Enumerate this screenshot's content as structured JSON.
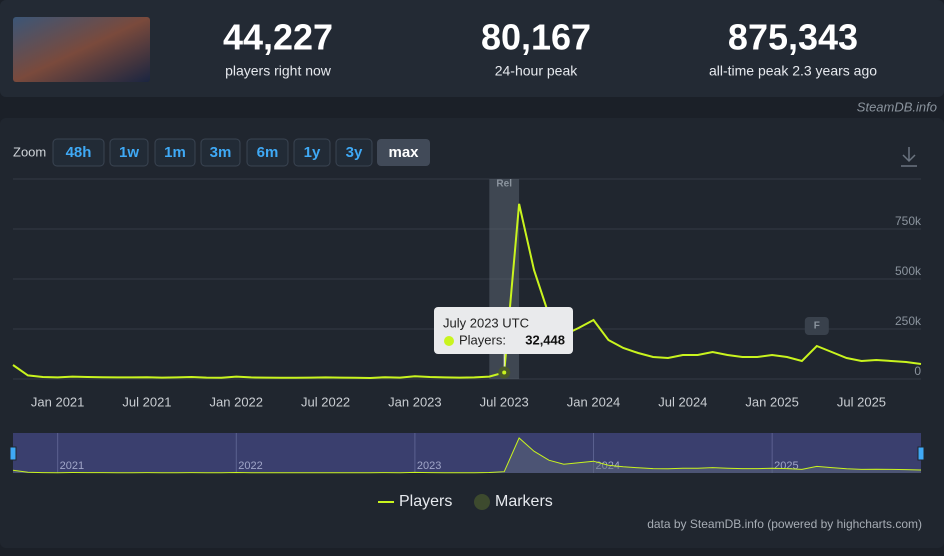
{
  "header": {
    "stats": [
      {
        "value": "44,227",
        "label": "players right now"
      },
      {
        "value": "80,167",
        "label": "24-hour peak"
      },
      {
        "value": "875,343",
        "label": "all-time peak 2.3 years ago"
      }
    ],
    "brand": "SteamDB.info"
  },
  "zoom": {
    "label": "Zoom",
    "buttons": [
      "48h",
      "1w",
      "1m",
      "3m",
      "6m",
      "1y",
      "3y",
      "max"
    ],
    "selected": 7
  },
  "chart_data": {
    "type": "line",
    "x": [
      "2020-10",
      "2020-11",
      "2020-12",
      "2021-01",
      "2021-02",
      "2021-03",
      "2021-04",
      "2021-05",
      "2021-06",
      "2021-07",
      "2021-08",
      "2021-09",
      "2021-10",
      "2021-11",
      "2021-12",
      "2022-01",
      "2022-02",
      "2022-03",
      "2022-04",
      "2022-05",
      "2022-06",
      "2022-07",
      "2022-08",
      "2022-09",
      "2022-10",
      "2022-11",
      "2022-12",
      "2023-01",
      "2023-02",
      "2023-03",
      "2023-04",
      "2023-05",
      "2023-06",
      "2023-07",
      "2023-08",
      "2023-09",
      "2023-10",
      "2023-11",
      "2023-12",
      "2024-01",
      "2024-02",
      "2024-03",
      "2024-04",
      "2024-05",
      "2024-06",
      "2024-07",
      "2024-08",
      "2024-09",
      "2024-10",
      "2024-11",
      "2024-12",
      "2025-01",
      "2025-02",
      "2025-03",
      "2025-04",
      "2025-05",
      "2025-06",
      "2025-07",
      "2025-08",
      "2025-09",
      "2025-10",
      "2025-11"
    ],
    "series": [
      {
        "name": "Players",
        "color": "#c9f41e",
        "values": [
          70000,
          18000,
          10000,
          8000,
          12000,
          10000,
          9000,
          8000,
          8000,
          9000,
          7000,
          8000,
          10000,
          7000,
          6000,
          12000,
          8000,
          7000,
          6000,
          6000,
          7000,
          8000,
          7000,
          6000,
          5000,
          9000,
          7000,
          14000,
          10000,
          8000,
          7000,
          8000,
          12000,
          32448,
          875343,
          545000,
          320000,
          220000,
          255000,
          295000,
          195000,
          155000,
          130000,
          110000,
          105000,
          120000,
          120000,
          135000,
          120000,
          110000,
          110000,
          120000,
          110000,
          90000,
          165000,
          135000,
          105000,
          90000,
          95000,
          90000,
          85000,
          75000
        ]
      }
    ],
    "markers": {
      "name": "Markers",
      "color": "#3d4a2e",
      "items": [
        {
          "label": "Rel",
          "from": "2023-06",
          "to": "2023-08"
        },
        {
          "label": "F",
          "x": "2025-04"
        }
      ]
    },
    "xlim": [
      "2020-10",
      "2025-11"
    ],
    "xticks": [
      {
        "value": "2021-01",
        "label": "Jan 2021"
      },
      {
        "value": "2021-07",
        "label": "Jul 2021"
      },
      {
        "value": "2022-01",
        "label": "Jan 2022"
      },
      {
        "value": "2022-07",
        "label": "Jul 2022"
      },
      {
        "value": "2023-01",
        "label": "Jan 2023"
      },
      {
        "value": "2023-07",
        "label": "Jul 2023"
      },
      {
        "value": "2024-01",
        "label": "Jan 2024"
      },
      {
        "value": "2024-07",
        "label": "Jul 2024"
      },
      {
        "value": "2025-01",
        "label": "Jan 2025"
      },
      {
        "value": "2025-07",
        "label": "Jul 2025"
      }
    ],
    "ylim": [
      0,
      1000000
    ],
    "yticks": [
      0,
      {
        "value": 250000,
        "label": "250k"
      },
      {
        "value": 500000,
        "label": "500k"
      },
      {
        "value": 750000,
        "label": "750k"
      }
    ],
    "grid": true,
    "tooltip": {
      "title": "July 2023 UTC",
      "label": "Players:",
      "value": "32,448",
      "index": 33
    },
    "navigator": {
      "xticks": [
        {
          "value": "2021-01",
          "label": "2021"
        },
        {
          "value": "2022-01",
          "label": "2022"
        },
        {
          "value": "2023-01",
          "label": "2023"
        },
        {
          "value": "2024-01",
          "label": "2024"
        },
        {
          "value": "2025-01",
          "label": "2025"
        }
      ]
    },
    "credit": "data by SteamDB.info (powered by highcharts.com)"
  }
}
